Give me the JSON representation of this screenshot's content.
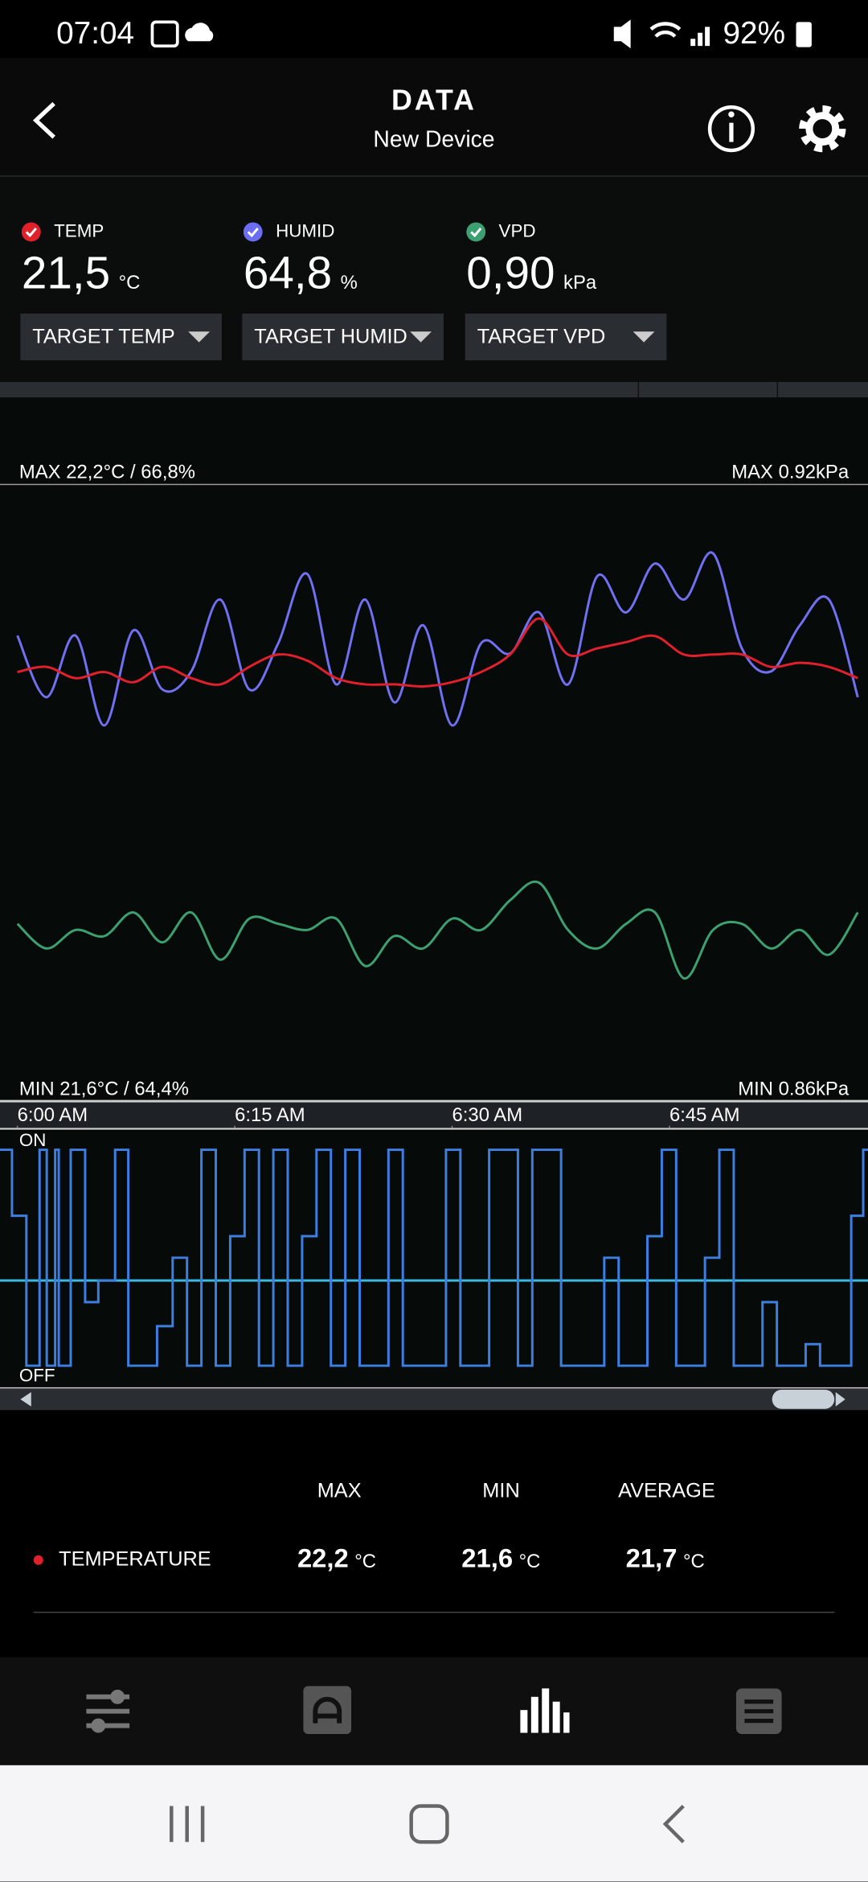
{
  "status_bar": {
    "time": "07:04",
    "battery": "92%"
  },
  "header": {
    "title": "DATA",
    "subtitle": "New Device"
  },
  "readings": [
    {
      "label": "TEMP",
      "value": "21,5",
      "unit": "°C",
      "target": "TARGET TEMP",
      "color": "#e0202a"
    },
    {
      "label": "HUMID",
      "value": "64,8",
      "unit": "%",
      "target": "TARGET HUMID",
      "color": "#6b6ef0"
    },
    {
      "label": "VPD",
      "value": "0,90",
      "unit": "kPa",
      "target": "TARGET VPD",
      "color": "#3ca070"
    }
  ],
  "chart_data": {
    "type": "line",
    "max_label": "MAX 22,2°C / 66,8%",
    "max_label_right": "MAX 0.92kPa",
    "min_label": "MIN 21,6°C / 64,4%",
    "min_label_right": "MIN 0.86kPa",
    "x": [
      0,
      2,
      4,
      6,
      8,
      10,
      12,
      14,
      16,
      18,
      20,
      22,
      24,
      26,
      28,
      30,
      32,
      34,
      36,
      38,
      40,
      42,
      44,
      46,
      48,
      50,
      52,
      54,
      56,
      58
    ],
    "xlim": [
      -1.2,
      58.7
    ],
    "xticks": [
      {
        "value": 0,
        "label": "6:00 AM"
      },
      {
        "value": 15,
        "label": "6:15 AM"
      },
      {
        "value": 30,
        "label": "6:30 AM"
      },
      {
        "value": 45,
        "label": "6:45 AM"
      }
    ],
    "series": [
      {
        "name": "TEMP",
        "color": "#e0202a",
        "ylim": [
          21.6,
          22.2
        ],
        "values": [
          22.017,
          22.022,
          22.011,
          22.017,
          22.007,
          22.022,
          22.011,
          22.005,
          22.022,
          22.034,
          22.028,
          22.011,
          22.005,
          22.005,
          22.003,
          22.007,
          22.017,
          22.034,
          22.069,
          22.034,
          22.04,
          22.046,
          22.052,
          22.034,
          22.034,
          22.034,
          22.022,
          22.026,
          22.022,
          22.011
        ]
      },
      {
        "name": "HUMID",
        "color": "#7070f0",
        "ylim": [
          64.4,
          66.8
        ],
        "values": [
          66.21,
          65.97,
          66.21,
          65.86,
          66.23,
          66.0,
          66.07,
          66.35,
          66.0,
          66.18,
          66.45,
          66.02,
          66.35,
          65.95,
          66.25,
          65.86,
          66.18,
          66.14,
          66.3,
          66.02,
          66.44,
          66.3,
          66.49,
          66.35,
          66.53,
          66.16,
          66.07,
          66.25,
          66.35,
          65.97
        ]
      },
      {
        "name": "VPD",
        "color": "#3ca070",
        "ylim": [
          0.86,
          0.92
        ],
        "values": [
          0.8772,
          0.8748,
          0.8766,
          0.876,
          0.8783,
          0.8754,
          0.8783,
          0.8737,
          0.8777,
          0.8772,
          0.8766,
          0.8777,
          0.8731,
          0.876,
          0.8748,
          0.8777,
          0.8766,
          0.8795,
          0.8812,
          0.8766,
          0.8748,
          0.8772,
          0.8783,
          0.8719,
          0.8766,
          0.8772,
          0.8748,
          0.8766,
          0.8742,
          0.8783
        ]
      }
    ]
  },
  "relay": {
    "on_label": "ON",
    "off_label": "OFF"
  },
  "stats": {
    "columns": [
      "MAX",
      "MIN",
      "AVERAGE"
    ],
    "rows": [
      {
        "name": "TEMPERATURE",
        "color": "#e0202a",
        "unit": "°C",
        "values": [
          "22,2",
          "21,6",
          "21,7"
        ]
      }
    ]
  }
}
